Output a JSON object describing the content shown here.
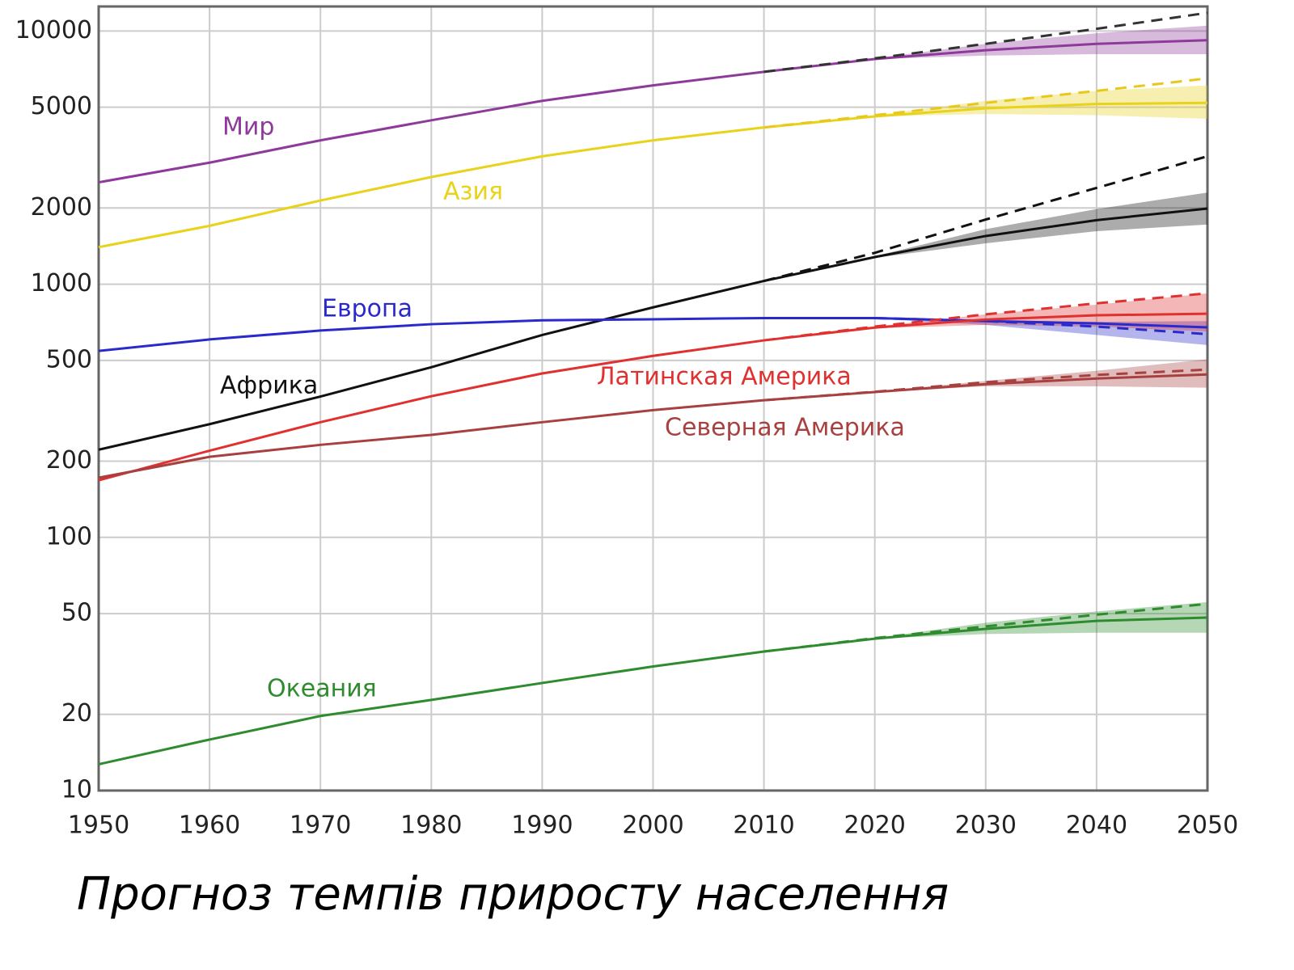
{
  "chart_data": {
    "type": "line",
    "title": "Прогноз темпів приросту населення",
    "x": [
      1950,
      1960,
      1970,
      1980,
      1990,
      2000,
      2010,
      2020,
      2030,
      2040,
      2050
    ],
    "xlim": [
      1950,
      2050
    ],
    "xticks": [
      1950,
      1960,
      1970,
      1980,
      1990,
      2000,
      2010,
      2020,
      2030,
      2040,
      2050
    ],
    "ylim": [
      10,
      12500
    ],
    "yticks": [
      10,
      20,
      50,
      100,
      200,
      500,
      1000,
      2000,
      5000,
      10000
    ],
    "log_y": true,
    "grid": true,
    "series": [
      {
        "name": "Мир",
        "color": "#8e3a9a",
        "values": [
          2525,
          3020,
          3700,
          4440,
          5300,
          6100,
          6900,
          7750,
          8400,
          8900,
          9200
        ],
        "low": [
          null,
          null,
          null,
          null,
          null,
          null,
          null,
          7750,
          8000,
          8100,
          8100
        ],
        "high": [
          null,
          null,
          null,
          null,
          null,
          null,
          null,
          7800,
          8900,
          9800,
          10500
        ],
        "high_variant": [
          null,
          null,
          null,
          null,
          null,
          null,
          6900,
          7800,
          8900,
          10200,
          11800
        ]
      },
      {
        "name": "Азия",
        "color": "#e8d21a",
        "values": [
          1400,
          1700,
          2140,
          2650,
          3200,
          3700,
          4160,
          4600,
          4950,
          5150,
          5200
        ],
        "low": [
          null,
          null,
          null,
          null,
          null,
          null,
          null,
          4600,
          4700,
          4650,
          4500
        ],
        "high": [
          null,
          null,
          null,
          null,
          null,
          null,
          null,
          4650,
          5300,
          5800,
          6100
        ],
        "high_variant": [
          null,
          null,
          null,
          null,
          null,
          null,
          4160,
          4650,
          5200,
          5800,
          6500
        ]
      },
      {
        "name": "Африка",
        "color": "#111111",
        "values": [
          222,
          280,
          360,
          470,
          630,
          810,
          1030,
          1280,
          1550,
          1790,
          1990
        ],
        "low": [
          null,
          null,
          null,
          null,
          null,
          null,
          null,
          1270,
          1450,
          1620,
          1720
        ],
        "high": [
          null,
          null,
          null,
          null,
          null,
          null,
          null,
          1290,
          1650,
          1980,
          2300
        ],
        "high_variant": [
          null,
          null,
          null,
          null,
          null,
          null,
          1030,
          1330,
          1800,
          2400,
          3200
        ]
      },
      {
        "name": "Европа",
        "color": "#2a2acc",
        "values": [
          545,
          605,
          656,
          695,
          720,
          727,
          735,
          735,
          715,
          700,
          675
        ],
        "low": [
          null,
          null,
          null,
          null,
          null,
          null,
          null,
          730,
          690,
          630,
          575
        ],
        "high": [
          null,
          null,
          null,
          null,
          null,
          null,
          null,
          740,
          720,
          710,
          715
        ],
        "high_variant": [
          null,
          null,
          null,
          null,
          null,
          null,
          735,
          735,
          715,
          680,
          635
        ]
      },
      {
        "name": "Латинская Америка",
        "color": "#e03030",
        "values": [
          168,
          220,
          285,
          361,
          444,
          521,
          600,
          674,
          725,
          754,
          764
        ],
        "low": [
          null,
          null,
          null,
          null,
          null,
          null,
          null,
          670,
          690,
          680,
          650
        ],
        "high": [
          null,
          null,
          null,
          null,
          null,
          null,
          null,
          680,
          760,
          830,
          920
        ],
        "high_variant": [
          null,
          null,
          null,
          null,
          null,
          null,
          600,
          680,
          760,
          840,
          920
        ]
      },
      {
        "name": "Северная Америка",
        "color": "#a84040",
        "values": [
          172,
          208,
          232,
          254,
          285,
          318,
          348,
          375,
          403,
          424,
          440
        ],
        "low": [
          null,
          null,
          null,
          null,
          null,
          null,
          null,
          374,
          395,
          395,
          390
        ],
        "high": [
          null,
          null,
          null,
          null,
          null,
          null,
          null,
          376,
          415,
          455,
          505
        ],
        "high_variant": [
          null,
          null,
          null,
          null,
          null,
          null,
          348,
          376,
          410,
          438,
          460
        ]
      },
      {
        "name": "Океания",
        "color": "#2e8b2e",
        "values": [
          12.7,
          15.9,
          19.7,
          22.8,
          26.6,
          30.9,
          35.4,
          39.8,
          43.5,
          46.8,
          48.2
        ],
        "low": [
          null,
          null,
          null,
          null,
          null,
          null,
          null,
          39.8,
          41.5,
          42,
          42
        ],
        "high": [
          null,
          null,
          null,
          null,
          null,
          null,
          null,
          40,
          46,
          51,
          55.5
        ],
        "high_variant": [
          null,
          null,
          null,
          null,
          null,
          null,
          35.4,
          40,
          44.5,
          49.5,
          54.6
        ]
      }
    ]
  }
}
